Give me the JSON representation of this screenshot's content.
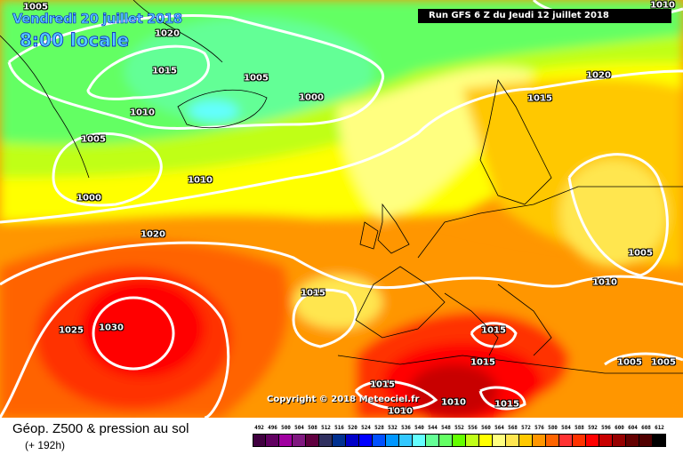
{
  "header": {
    "date": "Vendredi 20 juillet 2018",
    "time": "8:00 locale",
    "run": "Run GFS 6 Z du Jeudi 12 juillet 2018"
  },
  "copyright": "Copyright © 2018 Meteociel.fr",
  "footer": {
    "title": "Géop. Z500 & pression au sol",
    "forecast": "(+ 192h)"
  },
  "isobar_labels": [
    "1005",
    "1020",
    "1015",
    "1005",
    "1010",
    "1000",
    "1005",
    "1010",
    "1000",
    "1020",
    "1015",
    "1025",
    "1030",
    "1020",
    "1015",
    "1005",
    "1010",
    "1015",
    "1015",
    "1005",
    "1005",
    "1015",
    "1010",
    "1015",
    "1010",
    "1010"
  ],
  "legend": {
    "values": [
      "492",
      "496",
      "500",
      "504",
      "508",
      "512",
      "516",
      "520",
      "524",
      "528",
      "532",
      "536",
      "540",
      "544",
      "548",
      "552",
      "556",
      "560",
      "564",
      "568",
      "572",
      "576",
      "580",
      "584",
      "588",
      "592",
      "596",
      "600",
      "604",
      "608",
      "612"
    ],
    "colors": [
      "#400040",
      "#600060",
      "#a000a0",
      "#801880",
      "#600040",
      "#303060",
      "#003090",
      "#0000c8",
      "#0000ff",
      "#0050ff",
      "#0096ff",
      "#32c8ff",
      "#64ffff",
      "#64ff96",
      "#64ff64",
      "#64ff00",
      "#c0ff18",
      "#ffff00",
      "#ffff80",
      "#ffe650",
      "#ffc800",
      "#ff9600",
      "#ff6400",
      "#ff3232",
      "#ff3200",
      "#ff0000",
      "#c80000",
      "#960000",
      "#640000",
      "#500000",
      "#000000"
    ]
  }
}
